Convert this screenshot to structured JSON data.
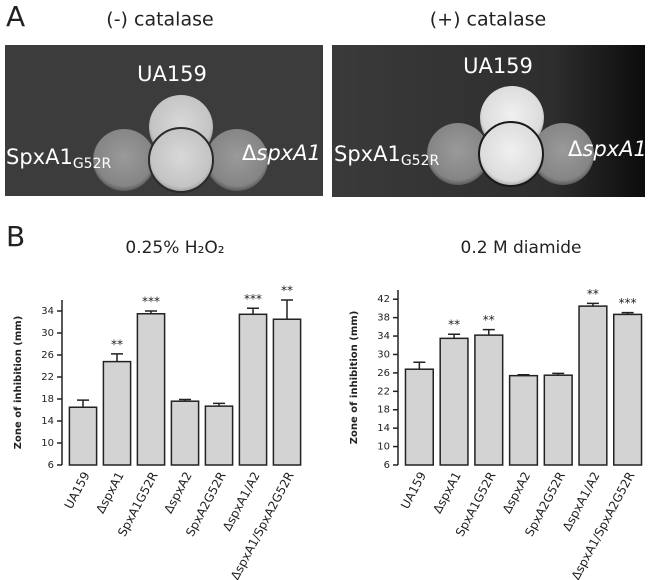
{
  "panel_a": {
    "label": "A",
    "left": {
      "title": "(-) catalase",
      "top": "UA159",
      "left_main": "SpxA1",
      "left_sub": "G52R",
      "right_symbol": "Δ",
      "right_main": "spxA1"
    },
    "right": {
      "title": "(+) catalase",
      "top": "UA159",
      "left_main": "SpxA1",
      "left_sub": "G52R",
      "right_symbol": "Δ",
      "right_main": "spxA1"
    }
  },
  "panel_b": {
    "label": "B"
  },
  "chart_data": [
    {
      "type": "bar",
      "title": "0.25% H₂O₂",
      "y_label": "Zone of inhibition (mm)",
      "color": "#d3d3d3",
      "categories": [
        "UA159",
        "ΔspxA1",
        "SpxA1G52R",
        "ΔspxA2",
        "SpxA2G52R",
        "ΔspxA1/A2",
        "ΔspxA1/SpxA2G52R"
      ],
      "values": [
        16.5,
        24.8,
        33.5,
        17.6,
        16.7,
        33.4,
        32.5
      ],
      "errors": [
        1.3,
        1.4,
        0.5,
        0.3,
        0.5,
        1.1,
        3.5
      ],
      "annotations": [
        null,
        "**",
        "***",
        null,
        null,
        "***",
        "**"
      ],
      "ylim": [
        6,
        36
      ],
      "yticks": [
        6,
        10,
        14,
        18,
        22,
        26,
        30,
        34
      ]
    },
    {
      "type": "bar",
      "title": "0.2 M diamide",
      "y_label": "Zone of inhibition (mm)",
      "color": "#d3d3d3",
      "categories": [
        "UA159",
        "ΔspxA1",
        "SpxA1G52R",
        "ΔspxA2",
        "SpxA2G52R",
        "ΔspxA1/A2",
        "ΔspxA1/SpxA2G52R"
      ],
      "values": [
        26.8,
        33.5,
        34.2,
        25.4,
        25.5,
        40.5,
        38.7
      ],
      "errors": [
        1.5,
        0.9,
        1.2,
        0.2,
        0.4,
        0.6,
        0.4
      ],
      "annotations": [
        null,
        "**",
        "**",
        null,
        null,
        "**",
        "***"
      ],
      "ylim": [
        6,
        44
      ],
      "yticks": [
        6,
        10,
        14,
        18,
        22,
        26,
        30,
        34,
        38,
        42
      ]
    }
  ]
}
